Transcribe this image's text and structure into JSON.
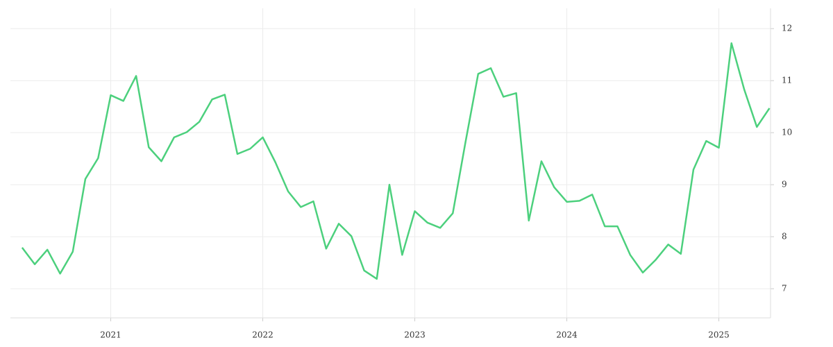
{
  "chart_data": {
    "type": "line",
    "x": [
      2020.417,
      2020.5,
      2020.583,
      2020.667,
      2020.75,
      2020.833,
      2020.917,
      2021.0,
      2021.083,
      2021.167,
      2021.25,
      2021.333,
      2021.417,
      2021.5,
      2021.583,
      2021.667,
      2021.75,
      2021.833,
      2021.917,
      2022.0,
      2022.083,
      2022.167,
      2022.25,
      2022.333,
      2022.417,
      2022.5,
      2022.583,
      2022.667,
      2022.75,
      2022.833,
      2022.917,
      2023.0,
      2023.083,
      2023.167,
      2023.25,
      2023.333,
      2023.417,
      2023.5,
      2023.583,
      2023.667,
      2023.75,
      2023.833,
      2023.917,
      2024.0,
      2024.083,
      2024.167,
      2024.25,
      2024.333,
      2024.417,
      2024.5,
      2024.583,
      2024.667,
      2024.75,
      2024.833,
      2024.917,
      2025.0,
      2025.083,
      2025.167,
      2025.25,
      2025.333
    ],
    "series": [
      {
        "color": "#4cd07d",
        "values": [
          7.79,
          7.47,
          7.75,
          7.29,
          7.71,
          9.11,
          9.51,
          10.72,
          10.61,
          11.09,
          9.72,
          9.45,
          9.91,
          10.01,
          10.21,
          10.64,
          10.73,
          9.59,
          9.69,
          9.91,
          9.43,
          8.87,
          8.57,
          8.68,
          7.77,
          8.25,
          8.01,
          7.35,
          7.19,
          9.0,
          7.65,
          8.49,
          8.27,
          8.17,
          8.45,
          9.81,
          11.13,
          11.24,
          10.69,
          10.76,
          8.31,
          9.45,
          8.95,
          8.67,
          8.69,
          8.81,
          8.2,
          8.2,
          7.65,
          7.31,
          7.55,
          7.85,
          7.67,
          9.29,
          9.84,
          9.71,
          11.72,
          10.83,
          10.11,
          10.47
        ]
      }
    ],
    "xlim": [
      2020.34,
      2025.34
    ],
    "xticks": [
      2021,
      2022,
      2023,
      2024,
      2025
    ],
    "ylim": [
      6.44,
      12.39
    ],
    "yticks": [
      7,
      8,
      9,
      10,
      11,
      12
    ],
    "grid": true
  }
}
